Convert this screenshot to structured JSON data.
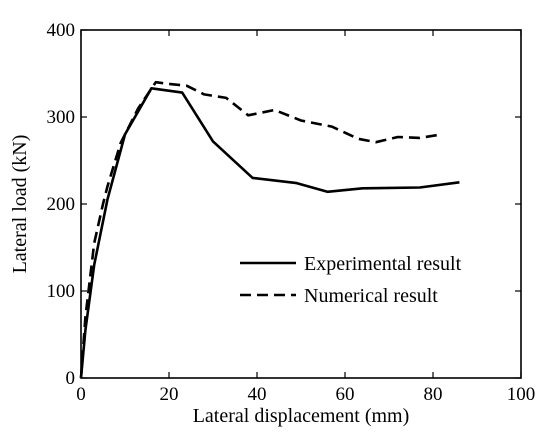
{
  "chart_data": {
    "type": "line",
    "xlabel": "Lateral displacement (mm)",
    "ylabel": "Lateral load (kN)",
    "xlim": [
      0,
      100
    ],
    "ylim": [
      0,
      400
    ],
    "xticks": [
      0,
      20,
      40,
      60,
      80,
      100
    ],
    "yticks": [
      0,
      100,
      200,
      300,
      400
    ],
    "x_tick_labels": [
      "0",
      "20",
      "40",
      "60",
      "80",
      "100"
    ],
    "y_tick_labels": [
      "0",
      "100",
      "200",
      "300",
      "400"
    ],
    "grid": false,
    "legend_position": "lower-right",
    "series": [
      {
        "name": "Experimental result",
        "style": "solid",
        "color": "#000000",
        "x": [
          0,
          1,
          3,
          6,
          10,
          16,
          23,
          30,
          39,
          49,
          56,
          64,
          77,
          86
        ],
        "y": [
          0,
          55,
          130,
          205,
          280,
          333,
          328,
          272,
          230,
          224,
          214,
          218,
          219,
          225
        ]
      },
      {
        "name": "Numerical result",
        "style": "dashed",
        "color": "#000000",
        "x": [
          0,
          1,
          3,
          5,
          6,
          9,
          13,
          17,
          20,
          24,
          28,
          33,
          38,
          44,
          50,
          57,
          63,
          67,
          72,
          77,
          82
        ],
        "y": [
          0,
          70,
          155,
          200,
          220,
          270,
          310,
          340,
          338,
          336,
          326,
          322,
          302,
          308,
          296,
          289,
          275,
          271,
          277,
          276,
          280
        ]
      }
    ]
  }
}
